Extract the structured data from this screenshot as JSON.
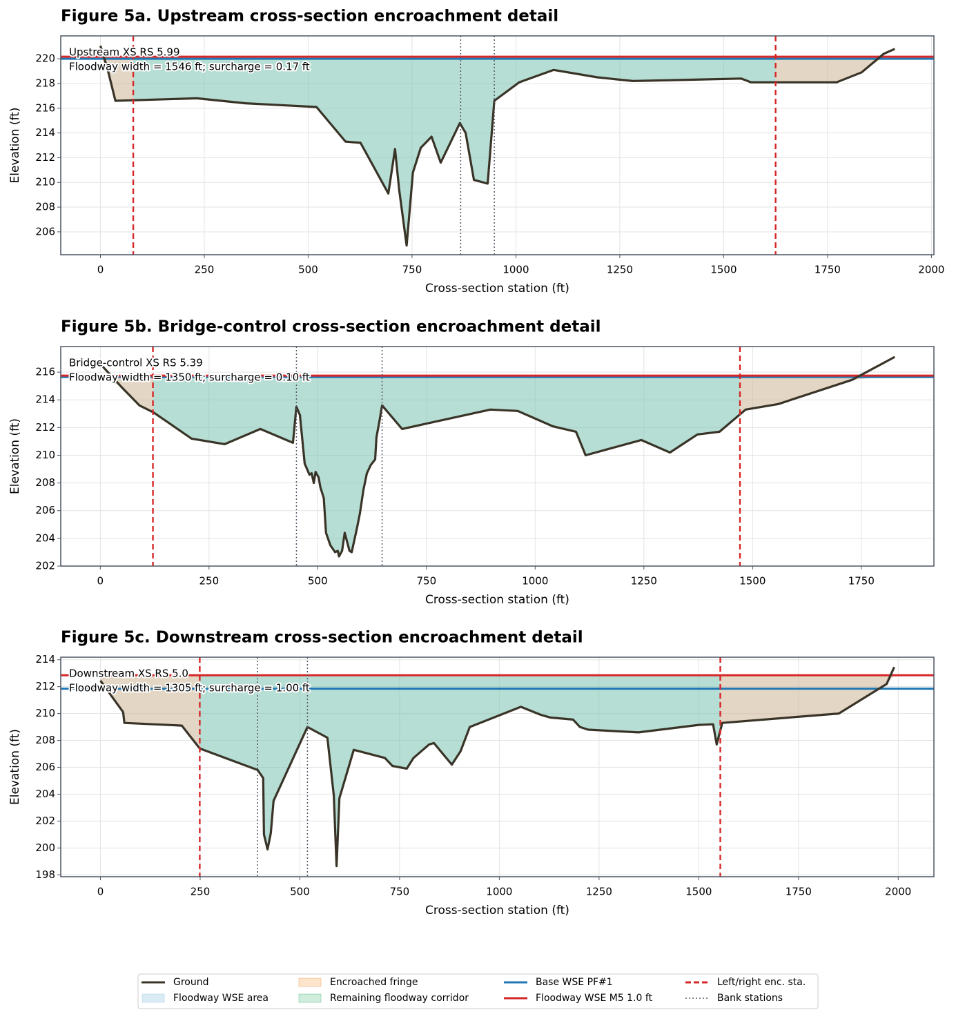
{
  "chart_data": [
    {
      "type": "line",
      "title": "Figure 5a. Upstream cross-section encroachment detail",
      "xlabel": "Cross-section station (ft)",
      "ylabel": "Elevation (ft)",
      "annotations": [
        "Upstream XS RS 5.99",
        "Floodway width = 1546 ft; surcharge = 0.17 ft"
      ],
      "x": [
        0,
        17,
        36,
        232,
        349,
        520,
        590,
        626,
        693,
        709,
        719,
        737,
        752,
        771,
        797,
        819,
        865,
        879,
        899,
        932,
        948,
        1008,
        1091,
        1196,
        1282,
        1542,
        1566,
        1772,
        1832,
        1885,
        1912
      ],
      "values": [
        221.05,
        219.2,
        216.6,
        216.8,
        216.4,
        216.1,
        213.3,
        213.2,
        209.1,
        212.7,
        209.4,
        204.9,
        210.8,
        212.8,
        213.7,
        211.6,
        214.8,
        214.0,
        210.2,
        209.9,
        216.6,
        218.1,
        219.1,
        218.5,
        218.2,
        218.4,
        218.1,
        218.1,
        218.9,
        220.4,
        220.8
      ],
      "base_wse": 220.0,
      "floodway_wse": 220.17,
      "encroachments": [
        79,
        1625
      ],
      "bank_stations": [
        867,
        948
      ],
      "xlim": [
        -95.5,
        2006
      ],
      "ylim": [
        204.15,
        221.85
      ],
      "xticks": [
        0,
        250,
        500,
        750,
        1000,
        1250,
        1500,
        1750,
        2000
      ],
      "yticks": [
        206,
        208,
        210,
        212,
        214,
        216,
        218,
        220
      ],
      "grid": true
    },
    {
      "type": "line",
      "title": "Figure 5b. Bridge-control cross-section encroachment detail",
      "xlabel": "Cross-section station (ft)",
      "ylabel": "Elevation (ft)",
      "annotations": [
        "Bridge-control XS RS 5.39",
        "Floodway width = 1350 ft; surcharge = 0.10 ft"
      ],
      "x": [
        0,
        48,
        90,
        122,
        210,
        286,
        368,
        443,
        451,
        459,
        470,
        481,
        486,
        491,
        495,
        502,
        506,
        514,
        519,
        529,
        540,
        546,
        549,
        556,
        562,
        573,
        578,
        590,
        597,
        605,
        613,
        622,
        632,
        635,
        641,
        648,
        694,
        897,
        960,
        1040,
        1094,
        1116,
        1244,
        1310,
        1373,
        1424,
        1484,
        1559,
        1729,
        1827
      ],
      "values": [
        216.6,
        214.95,
        213.6,
        213.1,
        211.2,
        210.8,
        211.9,
        210.9,
        213.5,
        212.9,
        209.4,
        208.6,
        208.7,
        208.0,
        208.8,
        208.4,
        207.7,
        206.9,
        204.4,
        203.5,
        203.0,
        203.1,
        202.7,
        203.1,
        204.4,
        203.1,
        203.0,
        204.7,
        205.8,
        207.5,
        208.7,
        209.3,
        209.7,
        211.3,
        212.3,
        213.6,
        211.9,
        213.3,
        213.2,
        212.1,
        211.7,
        210.0,
        211.1,
        210.2,
        211.5,
        211.7,
        213.3,
        213.7,
        215.45,
        217.1
      ],
      "base_wse": 215.65,
      "floodway_wse": 215.75,
      "encroachments": [
        121,
        1471
      ],
      "bank_stations": [
        451,
        648
      ],
      "xlim": [
        -91,
        1917
      ],
      "ylim": [
        202,
        217.85
      ],
      "xticks": [
        0,
        250,
        500,
        750,
        1000,
        1250,
        1500,
        1750
      ],
      "yticks": [
        202,
        204,
        206,
        208,
        210,
        212,
        214,
        216
      ],
      "grid": true
    },
    {
      "type": "line",
      "title": "Figure 5c. Downstream cross-section encroachment detail",
      "xlabel": "Cross-section station (ft)",
      "ylabel": "Elevation (ft)",
      "annotations": [
        "Downstream XS RS 5.0",
        "Floodway width = 1305 ft; surcharge = 1.00 ft"
      ],
      "x": [
        0,
        57,
        60,
        204,
        249,
        394,
        408,
        410,
        419,
        427,
        434,
        519,
        569,
        585,
        592,
        599,
        635,
        713,
        732,
        768,
        785,
        824,
        836,
        881,
        903,
        926,
        1054,
        1104,
        1128,
        1185,
        1202,
        1223,
        1349,
        1500,
        1536,
        1545,
        1559,
        1851,
        1971,
        1990
      ],
      "values": [
        212.45,
        210.1,
        209.3,
        209.1,
        207.4,
        205.8,
        205.2,
        201.0,
        199.9,
        201.1,
        203.5,
        209.0,
        208.2,
        203.9,
        198.65,
        203.7,
        207.3,
        206.7,
        206.1,
        205.9,
        206.7,
        207.7,
        207.8,
        206.2,
        207.2,
        209.0,
        210.5,
        209.9,
        209.7,
        209.55,
        209.0,
        208.8,
        208.6,
        209.15,
        209.2,
        207.7,
        209.3,
        210.0,
        212.2,
        213.45
      ],
      "base_wse": 211.85,
      "floodway_wse": 212.85,
      "encroachments": [
        249,
        1554
      ],
      "bank_stations": [
        394,
        519
      ],
      "xlim": [
        -99.5,
        2089.5
      ],
      "ylim": [
        197.86,
        214.19
      ],
      "xticks": [
        0,
        250,
        500,
        750,
        1000,
        1250,
        1500,
        1750,
        2000
      ],
      "yticks": [
        198,
        200,
        202,
        204,
        206,
        208,
        210,
        212,
        214
      ],
      "grid": true
    }
  ],
  "legend": {
    "items": [
      {
        "name": "Ground",
        "color": "#3a3428"
      },
      {
        "name": "Floodway WSE area",
        "color": "#a6cee3"
      },
      {
        "name": "Encroached fringe",
        "color": "#f5a55a"
      },
      {
        "name": "Remaining floodway corridor",
        "color": "#5fbf8a"
      },
      {
        "name": "Base WSE PF#1",
        "color": "#1f77b4"
      },
      {
        "name": "Floodway WSE M5 1.0 ft",
        "color": "#d62728"
      },
      {
        "name": "Left/right enc. sta.",
        "color": "#d62728"
      },
      {
        "name": "Bank stations",
        "color": "#555566"
      }
    ]
  }
}
